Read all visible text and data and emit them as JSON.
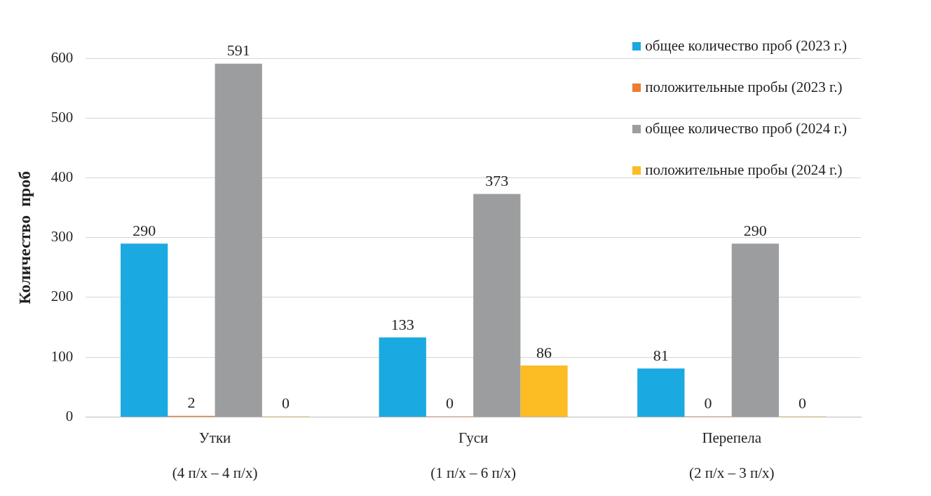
{
  "chart_data": {
    "type": "bar",
    "ylabel": "Количество  проб",
    "categories": [
      "Утки\n(4 п/х – 4 п/х)",
      "Гуси\n(1 п/х – 6 п/х)",
      "Перепела\n(2 п/х – 3 п/х)"
    ],
    "series": [
      {
        "name": "общее количество проб (2023 г.)",
        "color": "#1ba9e1",
        "values": [
          290,
          133,
          81
        ]
      },
      {
        "name": "положительные пробы (2023 г.)",
        "color": "#ed7d31",
        "values": [
          2,
          0,
          0
        ]
      },
      {
        "name": "общее количество проб (2024 г.)",
        "color": "#9c9d9f",
        "values": [
          591,
          373,
          290
        ]
      },
      {
        "name": "положительные пробы (2024 г.)",
        "color": "#fbbc24",
        "values": [
          0,
          86,
          0
        ]
      }
    ],
    "ylim": [
      0,
      600
    ],
    "yticks": [
      0,
      100,
      200,
      300,
      400,
      500,
      600
    ],
    "grid": "y",
    "legend": "top right",
    "data_labels": true
  }
}
